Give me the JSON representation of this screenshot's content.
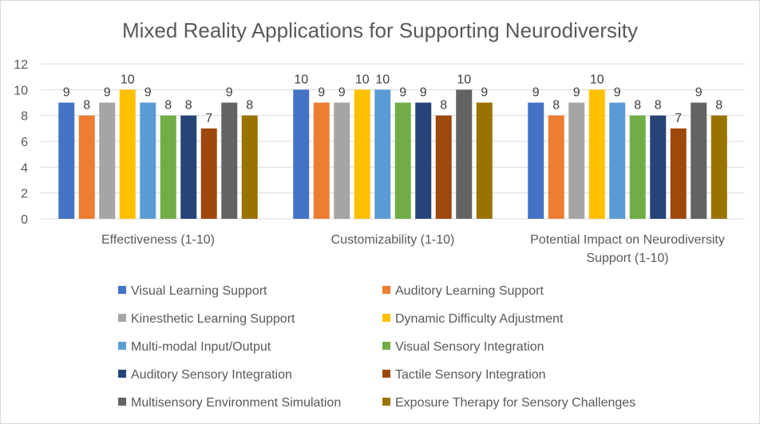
{
  "chart_data": {
    "type": "bar",
    "title": "Mixed Reality Applications for Supporting Neurodiversity",
    "xlabel": "",
    "ylabel": "",
    "ylim": [
      0,
      12
    ],
    "yticks": [
      0,
      2,
      4,
      6,
      8,
      10,
      12
    ],
    "grid": true,
    "legend_placement": "bottom",
    "categories": [
      [
        "Effectiveness (1-10)"
      ],
      [
        "Customizability (1-10)"
      ],
      [
        "Potential Impact on Neurodiversity",
        "Support (1-10)"
      ]
    ],
    "series": [
      {
        "name": "Visual Learning Support",
        "color": "#4472c4",
        "values": [
          9,
          10,
          9
        ]
      },
      {
        "name": "Auditory Learning Support",
        "color": "#ed7d31",
        "values": [
          8,
          9,
          8
        ]
      },
      {
        "name": "Kinesthetic Learning Support",
        "color": "#a5a5a5",
        "values": [
          9,
          9,
          9
        ]
      },
      {
        "name": "Dynamic Difficulty Adjustment",
        "color": "#ffc000",
        "values": [
          10,
          10,
          10
        ]
      },
      {
        "name": "Multi-modal Input/Output",
        "color": "#5b9bd5",
        "values": [
          9,
          10,
          9
        ]
      },
      {
        "name": "Visual Sensory Integration",
        "color": "#70ad47",
        "values": [
          8,
          9,
          8
        ]
      },
      {
        "name": "Auditory Sensory Integration",
        "color": "#264478",
        "values": [
          8,
          9,
          8
        ]
      },
      {
        "name": "Tactile Sensory Integration",
        "color": "#9e480e",
        "values": [
          7,
          8,
          7
        ]
      },
      {
        "name": "Multisensory Environment Simulation",
        "color": "#636363",
        "values": [
          9,
          10,
          9
        ]
      },
      {
        "name": "Exposure Therapy for Sensory Challenges",
        "color": "#997300",
        "values": [
          8,
          9,
          8
        ]
      }
    ]
  }
}
